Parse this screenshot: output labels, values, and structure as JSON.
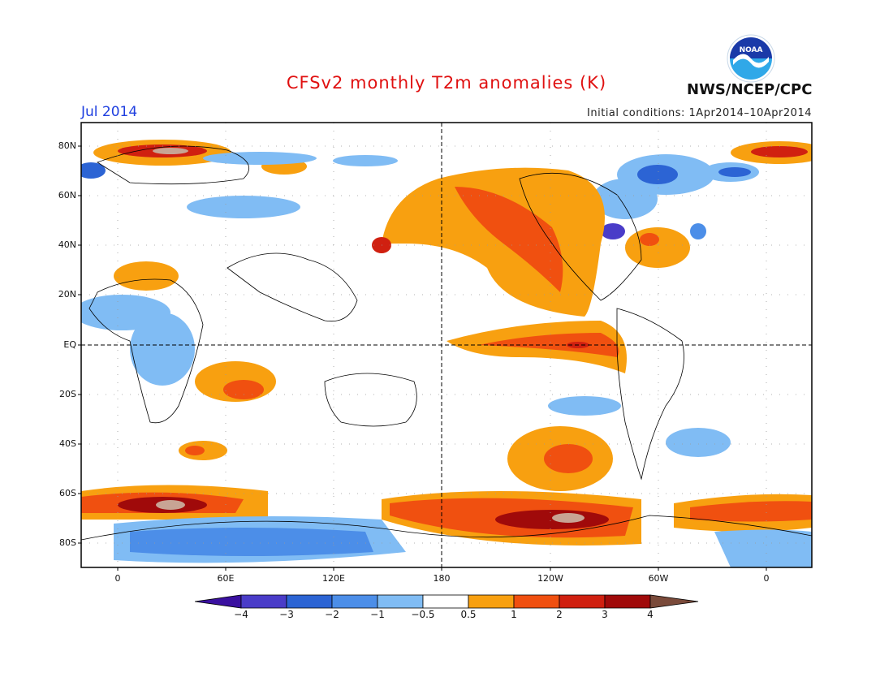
{
  "header": {
    "title": "CFSv2 monthly T2m anomalies (K)",
    "month": "Jul 2014",
    "initial_conditions": "Initial conditions: 1Apr2014–10Apr2014",
    "organization": "NWS/NCEP/CPC",
    "logo_text": "NOAA"
  },
  "map": {
    "lat_labels": [
      "80N",
      "60N",
      "40N",
      "20N",
      "EQ",
      "20S",
      "40S",
      "60S",
      "80S"
    ],
    "lon_labels": [
      "0",
      "60E",
      "120E",
      "180",
      "120W",
      "60W",
      "0"
    ]
  },
  "colorbar": {
    "labels": [
      "−4",
      "−3",
      "−2",
      "−1",
      "−0.5",
      "0.5",
      "1",
      "2",
      "3",
      "4"
    ],
    "colors": [
      "#3a10a0",
      "#4a3cc8",
      "#2c64d4",
      "#4c8ee8",
      "#80bcf4",
      "#ffffff",
      "#f8a010",
      "#f05010",
      "#d02010",
      "#a00a0a",
      "#c8a494",
      "#7a4a3a"
    ]
  }
}
